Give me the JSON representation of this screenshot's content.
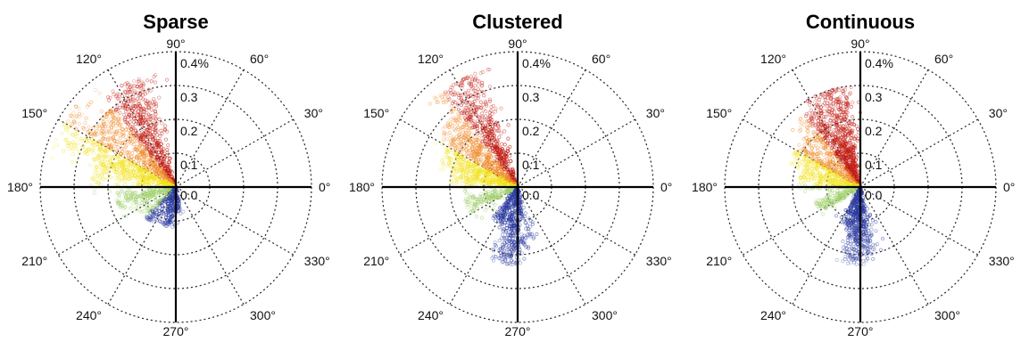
{
  "chart_data": [
    {
      "type": "scatter",
      "projection": "polar",
      "title": "Sparse",
      "angle_ticks_deg": [
        0,
        30,
        60,
        90,
        120,
        150,
        180,
        210,
        240,
        270,
        300,
        330
      ],
      "angle_tick_labels": [
        "0°",
        "30°",
        "60°",
        "90°",
        "120°",
        "150°",
        "180°",
        "210°",
        "240°",
        "270°",
        "300°",
        "330°"
      ],
      "radial_ticks": [
        0.0,
        0.1,
        0.2,
        0.3,
        0.4
      ],
      "radial_tick_labels": [
        "0.0",
        "0.1",
        "0.2",
        "0.3",
        "0.4%"
      ],
      "rlim": [
        0,
        0.4
      ],
      "grid": true,
      "color_encoding": "angle",
      "colors": {
        "red": "#c21b12",
        "orange": "#f08a2a",
        "yellow": "#f2e21a",
        "green": "#9fcf6b",
        "blue": "#2a3aa0"
      },
      "series": [
        {
          "theta_deg": 115,
          "r_max": 0.34,
          "count": 380
        },
        {
          "theta_deg": 132,
          "r_max": 0.3,
          "count": 300
        },
        {
          "theta_deg": 150,
          "r_max": 0.38,
          "count": 320
        },
        {
          "theta_deg": 165,
          "r_max": 0.25,
          "count": 240
        },
        {
          "theta_deg": 195,
          "r_max": 0.18,
          "count": 180
        },
        {
          "theta_deg": 225,
          "r_max": 0.13,
          "count": 120
        },
        {
          "theta_deg": 255,
          "r_max": 0.12,
          "count": 140
        },
        {
          "theta_deg": 275,
          "r_max": 0.08,
          "count": 60
        }
      ]
    },
    {
      "type": "scatter",
      "projection": "polar",
      "title": "Clustered",
      "angle_ticks_deg": [
        0,
        30,
        60,
        90,
        120,
        150,
        180,
        210,
        240,
        270,
        300,
        330
      ],
      "angle_tick_labels": [
        "0°",
        "30°",
        "60°",
        "90°",
        "120°",
        "150°",
        "180°",
        "210°",
        "240°",
        "270°",
        "300°",
        "330°"
      ],
      "radial_ticks": [
        0.0,
        0.1,
        0.2,
        0.3,
        0.4
      ],
      "radial_tick_labels": [
        "0.0",
        "0.1",
        "0.2",
        "0.3",
        "0.4%"
      ],
      "rlim": [
        0,
        0.4
      ],
      "grid": true,
      "color_encoding": "angle",
      "colors": {
        "red": "#c21b12",
        "orange": "#f08a2a",
        "yellow": "#f2e21a",
        "green": "#9fcf6b",
        "blue": "#2a3aa0"
      },
      "series": [
        {
          "theta_deg": 118,
          "r_max": 0.36,
          "count": 420
        },
        {
          "theta_deg": 135,
          "r_max": 0.28,
          "count": 300
        },
        {
          "theta_deg": 152,
          "r_max": 0.24,
          "count": 260
        },
        {
          "theta_deg": 168,
          "r_max": 0.2,
          "count": 200
        },
        {
          "theta_deg": 200,
          "r_max": 0.16,
          "count": 160
        },
        {
          "theta_deg": 240,
          "r_max": 0.12,
          "count": 120
        },
        {
          "theta_deg": 262,
          "r_max": 0.23,
          "count": 260
        },
        {
          "theta_deg": 275,
          "r_max": 0.18,
          "count": 120
        }
      ]
    },
    {
      "type": "scatter",
      "projection": "polar",
      "title": "Continuous",
      "angle_ticks_deg": [
        0,
        30,
        60,
        90,
        120,
        150,
        180,
        210,
        240,
        270,
        300,
        330
      ],
      "angle_tick_labels": [
        "0°",
        "30°",
        "60°",
        "90°",
        "120°",
        "150°",
        "180°",
        "210°",
        "240°",
        "270°",
        "300°",
        "330°"
      ],
      "radial_ticks": [
        0.0,
        0.1,
        0.2,
        0.3,
        0.4
      ],
      "radial_tick_labels": [
        "0.0",
        "0.1",
        "0.2",
        "0.3",
        "0.4%"
      ],
      "rlim": [
        0,
        0.4
      ],
      "grid": true,
      "color_encoding": "angle",
      "colors": {
        "red": "#c21b12",
        "orange": "#f08a2a",
        "yellow": "#f2e21a",
        "green": "#9fcf6b",
        "blue": "#2a3aa0"
      },
      "series": [
        {
          "theta_deg": 108,
          "r_max": 0.3,
          "count": 440
        },
        {
          "theta_deg": 125,
          "r_max": 0.27,
          "count": 320
        },
        {
          "theta_deg": 150,
          "r_max": 0.22,
          "count": 240
        },
        {
          "theta_deg": 170,
          "r_max": 0.18,
          "count": 180
        },
        {
          "theta_deg": 205,
          "r_max": 0.14,
          "count": 140
        },
        {
          "theta_deg": 250,
          "r_max": 0.12,
          "count": 120
        },
        {
          "theta_deg": 266,
          "r_max": 0.23,
          "count": 280
        },
        {
          "theta_deg": 275,
          "r_max": 0.2,
          "count": 140
        }
      ]
    }
  ]
}
